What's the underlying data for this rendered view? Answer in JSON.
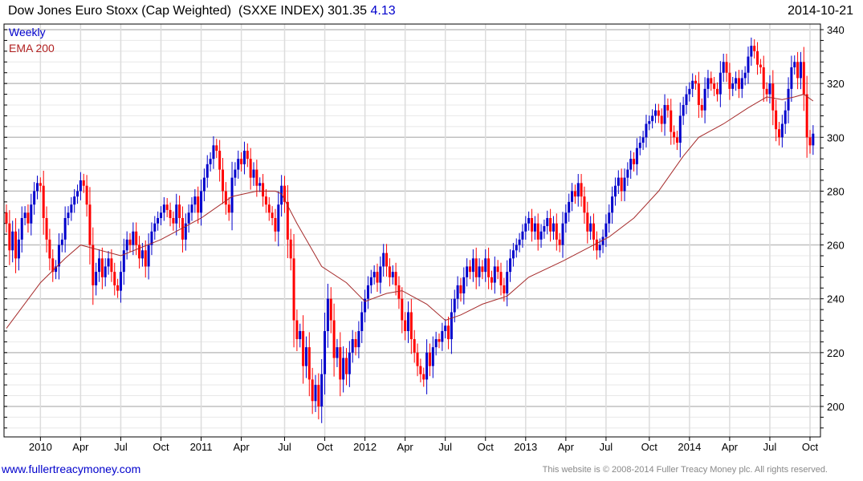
{
  "header": {
    "title": "Dow Jones Euro Stoxx (Cap Weighted)  (SXXE INDEX) 301.35",
    "change": "4.13",
    "date": "2014-10-21"
  },
  "legend": {
    "series": "Weekly",
    "ema": "EMA 200"
  },
  "footer": {
    "website": "www.fullertreacymoney.com",
    "copyright": "This website is © 2008-2014 Fuller Treacy Money plc. All rights reserved."
  },
  "colors": {
    "up": "#0000cc",
    "down": "#ff0000",
    "ema": "#a52a2a",
    "grid_major": "#c0c0c0",
    "grid_minor": "#e8e8e8"
  },
  "chart_data": {
    "type": "candlestick",
    "title": "Dow Jones Euro Stoxx (Cap Weighted) (SXXE INDEX)",
    "frequency": "weekly",
    "first_week": "2009-10-16",
    "last_week": "2014-10-17",
    "ylim": [
      188.7,
      342
    ],
    "y_ticks": [
      200,
      220,
      240,
      260,
      280,
      300,
      320,
      340
    ],
    "y_minor_step": 4,
    "x_ticks": [
      {
        "label": "2010",
        "week": 11
      },
      {
        "label": "Apr",
        "week": 24
      },
      {
        "label": "Jul",
        "week": 37
      },
      {
        "label": "Oct",
        "week": 50
      },
      {
        "label": "2011",
        "week": 63
      },
      {
        "label": "Apr",
        "week": 76
      },
      {
        "label": "Jul",
        "week": 90
      },
      {
        "label": "Oct",
        "week": 103
      },
      {
        "label": "2012",
        "week": 116
      },
      {
        "label": "Apr",
        "week": 129
      },
      {
        "label": "Jul",
        "week": 142
      },
      {
        "label": "Oct",
        "week": 155
      },
      {
        "label": "2013",
        "week": 168
      },
      {
        "label": "Apr",
        "week": 181
      },
      {
        "label": "Jul",
        "week": 194
      },
      {
        "label": "Oct",
        "week": 208
      },
      {
        "label": "2014",
        "week": 221
      },
      {
        "label": "Apr",
        "week": 234
      },
      {
        "label": "Jul",
        "week": 247
      },
      {
        "label": "Oct",
        "week": 260
      }
    ],
    "close": [
      268,
      258,
      265,
      255,
      262,
      270,
      272,
      268,
      275,
      280,
      283,
      282,
      270,
      262,
      255,
      250,
      252,
      260,
      262,
      270,
      272,
      275,
      278,
      280,
      284,
      282,
      275,
      260,
      245,
      250,
      255,
      248,
      252,
      255,
      250,
      245,
      243,
      250,
      258,
      262,
      260,
      265,
      260,
      255,
      258,
      252,
      260,
      265,
      268,
      270,
      272,
      275,
      273,
      270,
      268,
      275,
      270,
      262,
      268,
      272,
      275,
      278,
      272,
      280,
      285,
      290,
      292,
      297,
      295,
      288,
      280,
      275,
      272,
      285,
      288,
      292,
      290,
      295,
      292,
      285,
      288,
      282,
      283,
      278,
      275,
      272,
      270,
      265,
      275,
      282,
      276,
      262,
      255,
      232,
      225,
      228,
      215,
      222,
      210,
      202,
      208,
      200,
      212,
      228,
      240,
      232,
      218,
      222,
      210,
      218,
      212,
      220,
      225,
      222,
      228,
      235,
      240,
      245,
      248,
      250,
      246,
      252,
      257,
      252,
      248,
      250,
      245,
      240,
      232,
      228,
      235,
      225,
      220,
      215,
      212,
      210,
      220,
      215,
      222,
      225,
      224,
      228,
      230,
      225,
      235,
      240,
      245,
      242,
      248,
      252,
      250,
      255,
      248,
      252,
      250,
      255,
      248,
      246,
      252,
      250,
      245,
      242,
      250,
      255,
      258,
      260,
      262,
      265,
      268,
      270,
      265,
      268,
      262,
      265,
      267,
      270,
      265,
      268,
      262,
      260,
      268,
      272,
      276,
      280,
      278,
      283,
      278,
      272,
      265,
      268,
      262,
      258,
      260,
      263,
      268,
      272,
      278,
      282,
      285,
      280,
      285,
      288,
      292,
      290,
      296,
      298,
      300,
      305,
      306,
      308,
      310,
      308,
      305,
      312,
      310,
      302,
      300,
      298,
      308,
      312,
      316,
      318,
      321,
      320,
      312,
      310,
      318,
      322,
      320,
      318,
      316,
      324,
      328,
      324,
      318,
      320,
      322,
      318,
      322,
      324,
      330,
      334,
      332,
      327,
      326,
      318,
      316,
      320,
      310,
      303,
      300,
      305,
      310,
      318,
      326,
      328,
      322,
      328,
      316,
      300,
      297,
      301.35
    ],
    "first_open": 272,
    "ema200": [
      [
        0,
        229
      ],
      [
        11,
        246
      ],
      [
        19,
        255
      ],
      [
        24,
        260
      ],
      [
        37,
        256
      ],
      [
        50,
        262
      ],
      [
        63,
        270
      ],
      [
        73,
        278
      ],
      [
        81,
        280
      ],
      [
        87,
        280
      ],
      [
        89,
        279
      ],
      [
        94,
        268
      ],
      [
        102,
        252
      ],
      [
        110,
        246
      ],
      [
        116,
        239
      ],
      [
        123,
        242
      ],
      [
        128,
        243
      ],
      [
        136,
        238
      ],
      [
        142,
        232
      ],
      [
        147,
        234
      ],
      [
        154,
        238
      ],
      [
        162,
        241
      ],
      [
        169,
        248
      ],
      [
        180,
        254
      ],
      [
        190,
        260
      ],
      [
        195,
        263
      ],
      [
        203,
        270
      ],
      [
        211,
        280
      ],
      [
        219,
        293
      ],
      [
        224,
        300
      ],
      [
        232,
        305
      ],
      [
        240,
        311
      ],
      [
        246,
        315
      ],
      [
        251,
        314
      ],
      [
        255,
        315
      ],
      [
        258,
        316
      ],
      [
        261,
        313.5
      ]
    ]
  }
}
